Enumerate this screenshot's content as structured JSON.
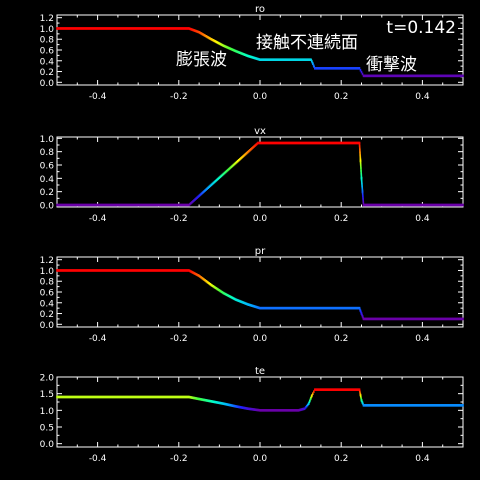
{
  "annotations": {
    "time": "t=0.142",
    "rarefaction": "膨張波",
    "contact": "接触不連続面",
    "shock": "衝撃波"
  },
  "colors": {
    "background": "#000000",
    "axis": "#ffffff",
    "colormap": [
      "#6a00a8",
      "#2020ff",
      "#00b0ff",
      "#00ffcc",
      "#40ff40",
      "#ffff00",
      "#ff8000",
      "#ff0000"
    ]
  },
  "chart_data": [
    {
      "type": "scatter",
      "title": "ro",
      "xlim": [
        -0.5,
        0.5
      ],
      "ylim": [
        -0.05,
        1.25
      ],
      "xticks": [
        -0.4,
        -0.2,
        0.0,
        0.2,
        0.4
      ],
      "xtick_labels": [
        "-0.4",
        "-0.2",
        "0.0",
        "0.2",
        "0.4"
      ],
      "yticks": [
        0.0,
        0.2,
        0.4,
        0.6,
        0.8,
        1.0,
        1.2
      ],
      "ytick_labels": [
        "0.0",
        "0.2",
        "0.4",
        "0.6",
        "0.8",
        "1.0",
        "1.2"
      ],
      "color_by_value": true,
      "cmin": 0.1,
      "cmax": 1.0,
      "x": [
        -0.5,
        -0.175,
        -0.15,
        -0.12,
        -0.09,
        -0.06,
        -0.03,
        0.0,
        0.126,
        0.135,
        0.245,
        0.255,
        0.5
      ],
      "y": [
        1.0,
        1.0,
        0.93,
        0.8,
        0.68,
        0.58,
        0.49,
        0.42,
        0.42,
        0.26,
        0.26,
        0.12,
        0.12
      ]
    },
    {
      "type": "scatter",
      "title": "vx",
      "xlim": [
        -0.5,
        0.5
      ],
      "ylim": [
        -0.03,
        1.02
      ],
      "xticks": [
        -0.4,
        -0.2,
        0.0,
        0.2,
        0.4
      ],
      "xtick_labels": [
        "-0.4",
        "-0.2",
        "0.0",
        "0.2",
        "0.4"
      ],
      "yticks": [
        0.0,
        0.2,
        0.4,
        0.6,
        0.8,
        1.0
      ],
      "ytick_labels": [
        "0.0",
        "0.2",
        "0.4",
        "0.6",
        "0.8",
        "1.0"
      ],
      "color_by_value": true,
      "cmin": 0.0,
      "cmax": 0.93,
      "x": [
        -0.5,
        -0.175,
        -0.005,
        0.245,
        0.25,
        0.255,
        0.5
      ],
      "y": [
        0.0,
        0.0,
        0.93,
        0.93,
        0.4,
        0.0,
        0.0
      ]
    },
    {
      "type": "scatter",
      "title": "pr",
      "xlim": [
        -0.5,
        0.5
      ],
      "ylim": [
        -0.05,
        1.25
      ],
      "xticks": [
        -0.4,
        -0.2,
        0.0,
        0.2,
        0.4
      ],
      "xtick_labels": [
        "-0.4",
        "-0.2",
        "0.0",
        "0.2",
        "0.4"
      ],
      "yticks": [
        0.0,
        0.2,
        0.4,
        0.6,
        0.8,
        1.0,
        1.2
      ],
      "ytick_labels": [
        "0.0",
        "0.2",
        "0.4",
        "0.6",
        "0.8",
        "1.0",
        "1.2"
      ],
      "color_by_value": true,
      "cmin": 0.1,
      "cmax": 1.0,
      "x": [
        -0.5,
        -0.175,
        -0.15,
        -0.12,
        -0.09,
        -0.06,
        -0.03,
        0.0,
        0.245,
        0.25,
        0.255,
        0.5
      ],
      "y": [
        1.0,
        1.0,
        0.9,
        0.73,
        0.58,
        0.46,
        0.37,
        0.3,
        0.3,
        0.2,
        0.1,
        0.1
      ]
    },
    {
      "type": "scatter",
      "title": "te",
      "xlim": [
        -0.5,
        0.5
      ],
      "ylim": [
        -0.1,
        2.0
      ],
      "xticks": [
        -0.4,
        -0.2,
        0.0,
        0.2,
        0.4
      ],
      "xtick_labels": [
        "-0.4",
        "-0.2",
        "0.0",
        "0.2",
        "0.4"
      ],
      "yticks": [
        0.0,
        0.5,
        1.0,
        1.5,
        2.0
      ],
      "ytick_labels": [
        "0.0",
        "0.5",
        "1.0",
        "1.5",
        "2.0"
      ],
      "color_by_value": true,
      "cmin": 1.0,
      "cmax": 1.6,
      "x": [
        -0.5,
        -0.175,
        -0.15,
        -0.12,
        -0.09,
        -0.06,
        -0.03,
        0.0,
        0.095,
        0.11,
        0.12,
        0.128,
        0.135,
        0.245,
        0.25,
        0.255,
        0.5
      ],
      "y": [
        1.4,
        1.4,
        1.34,
        1.27,
        1.2,
        1.12,
        1.05,
        1.0,
        1.0,
        1.05,
        1.2,
        1.45,
        1.62,
        1.62,
        1.3,
        1.15,
        1.15
      ]
    }
  ]
}
